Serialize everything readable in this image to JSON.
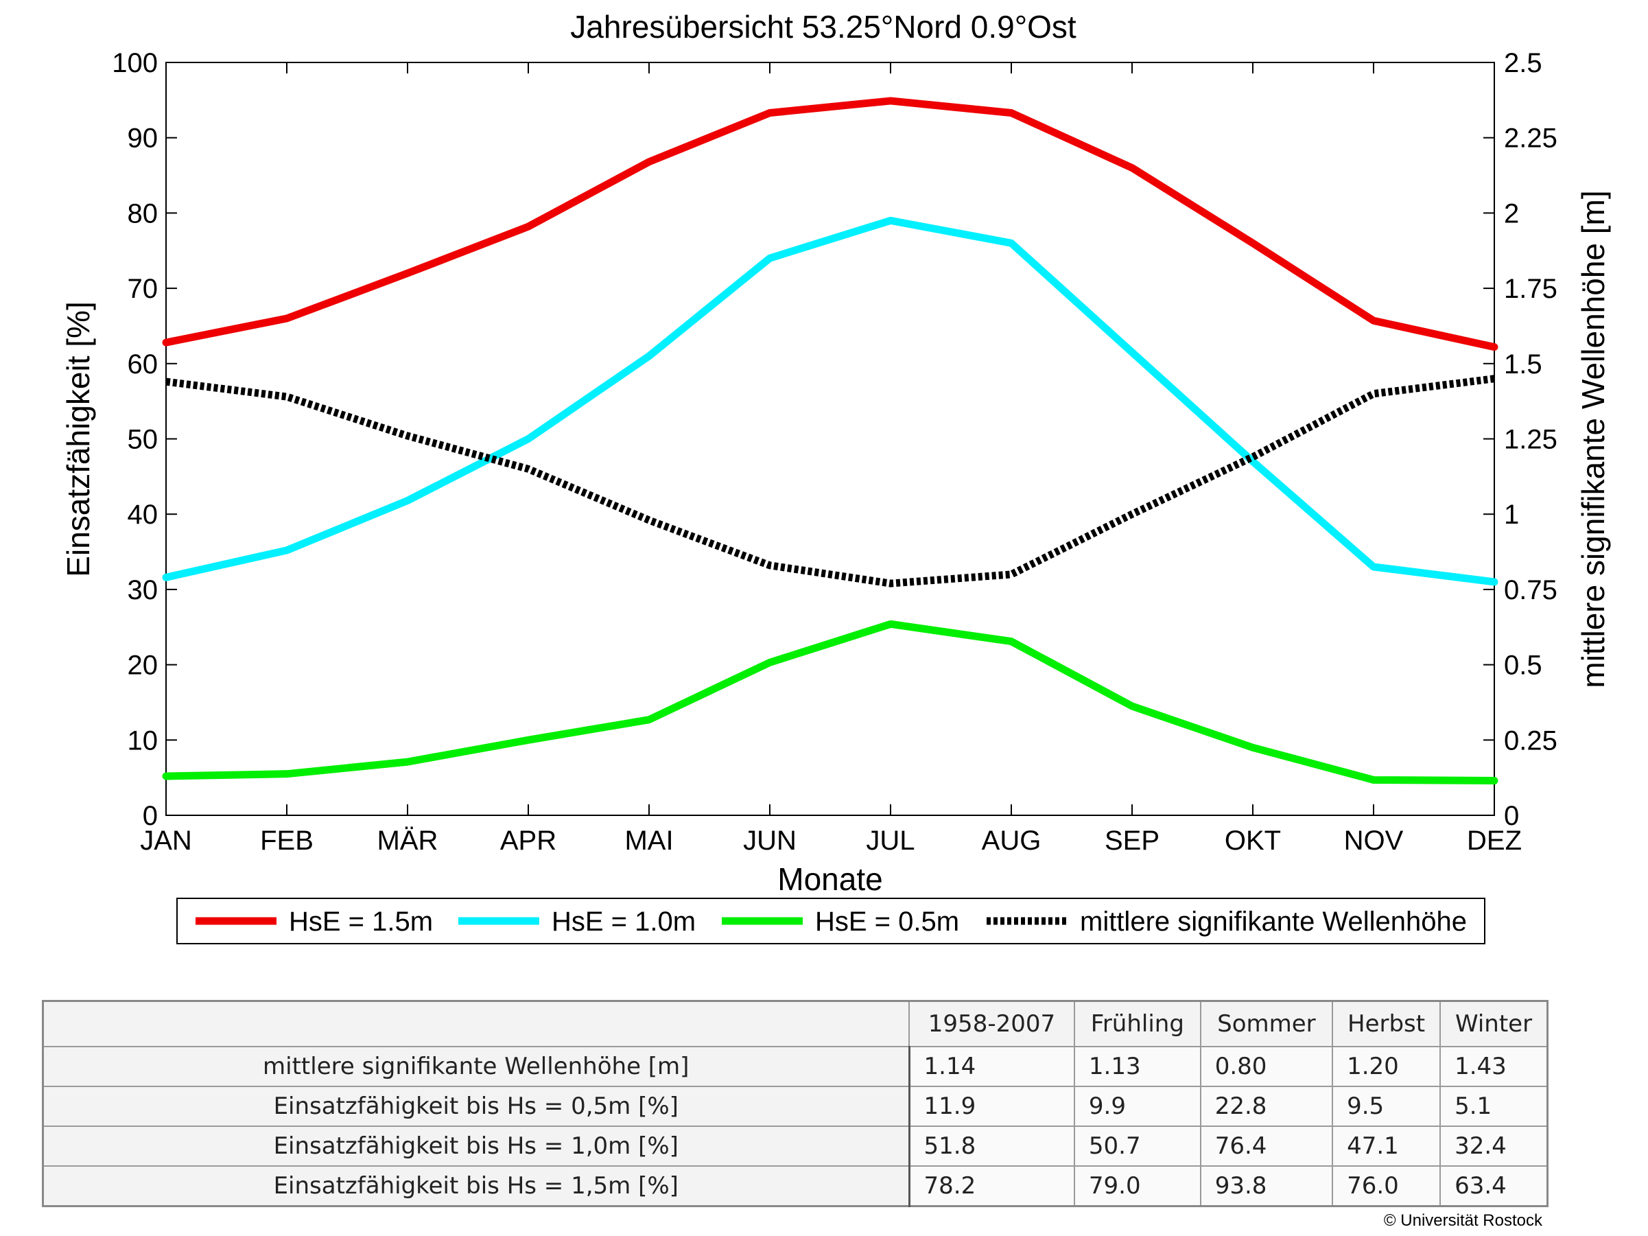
{
  "chart_data": {
    "type": "line",
    "title": "Jahresübersicht  53.25°Nord  0.9°Ost",
    "xlabel": "Monate",
    "ylabel": "Einsatzfähigkeit [%]",
    "ylabel_right": "mittlere signifikante Wellenhöhe [m]",
    "categories": [
      "JAN",
      "FEB",
      "MÄR",
      "APR",
      "MAI",
      "JUN",
      "JUL",
      "AUG",
      "SEP",
      "OKT",
      "NOV",
      "DEZ"
    ],
    "ylim": [
      0,
      100
    ],
    "yticks": [
      "0",
      "10",
      "20",
      "30",
      "40",
      "50",
      "60",
      "70",
      "80",
      "90",
      "100"
    ],
    "ylim_right": [
      0,
      2.5
    ],
    "yticks_right": [
      "0",
      "0.25",
      "0.5",
      "0.75",
      "1",
      "1.25",
      "1.5",
      "1.75",
      "2",
      "2.25",
      "2.5"
    ],
    "grid": false,
    "legend_position": "bottom",
    "series": [
      {
        "name": "HsE = 1.5m",
        "axis": "left",
        "color": "#ee0000",
        "dashed": false,
        "values": [
          62.8,
          66.0,
          72.0,
          78.2,
          86.8,
          93.3,
          94.9,
          93.3,
          86.0,
          76.0,
          65.7,
          62.2
        ]
      },
      {
        "name": "HsE = 1.0m",
        "axis": "left",
        "color": "#00f0ff",
        "dashed": false,
        "values": [
          31.6,
          35.2,
          41.8,
          50.0,
          61.0,
          74.0,
          79.0,
          76.0,
          61.5,
          47.0,
          33.0,
          31.0
        ]
      },
      {
        "name": "HsE = 0.5m",
        "axis": "left",
        "color": "#00ee00",
        "dashed": false,
        "values": [
          5.2,
          5.5,
          7.1,
          10.0,
          12.7,
          20.3,
          25.4,
          23.1,
          14.5,
          9.0,
          4.7,
          4.6
        ]
      },
      {
        "name": "mittlere signifikante Wellenhöhe",
        "axis": "right",
        "color": "#000000",
        "dashed": true,
        "values": [
          1.44,
          1.39,
          1.26,
          1.15,
          0.98,
          0.83,
          0.77,
          0.8,
          1.0,
          1.19,
          1.4,
          1.45
        ]
      }
    ]
  },
  "table": {
    "columns": [
      "",
      "1958-2007",
      "Frühling",
      "Sommer",
      "Herbst",
      "Winter"
    ],
    "rows": [
      {
        "label": "mittlere signifikante Wellenhöhe [m]",
        "values": [
          "1.14",
          "1.13",
          "0.80",
          "1.20",
          "1.43"
        ]
      },
      {
        "label": "Einsatzfähigkeit bis Hs = 0,5m [%]",
        "values": [
          "11.9",
          "9.9",
          "22.8",
          "9.5",
          "5.1"
        ]
      },
      {
        "label": "Einsatzfähigkeit bis Hs = 1,0m [%]",
        "values": [
          "51.8",
          "50.7",
          "76.4",
          "47.1",
          "32.4"
        ]
      },
      {
        "label": "Einsatzfähigkeit bis Hs = 1,5m [%]",
        "values": [
          "78.2",
          "79.0",
          "93.8",
          "76.0",
          "63.4"
        ]
      }
    ]
  },
  "credit": "© Universität Rostock"
}
